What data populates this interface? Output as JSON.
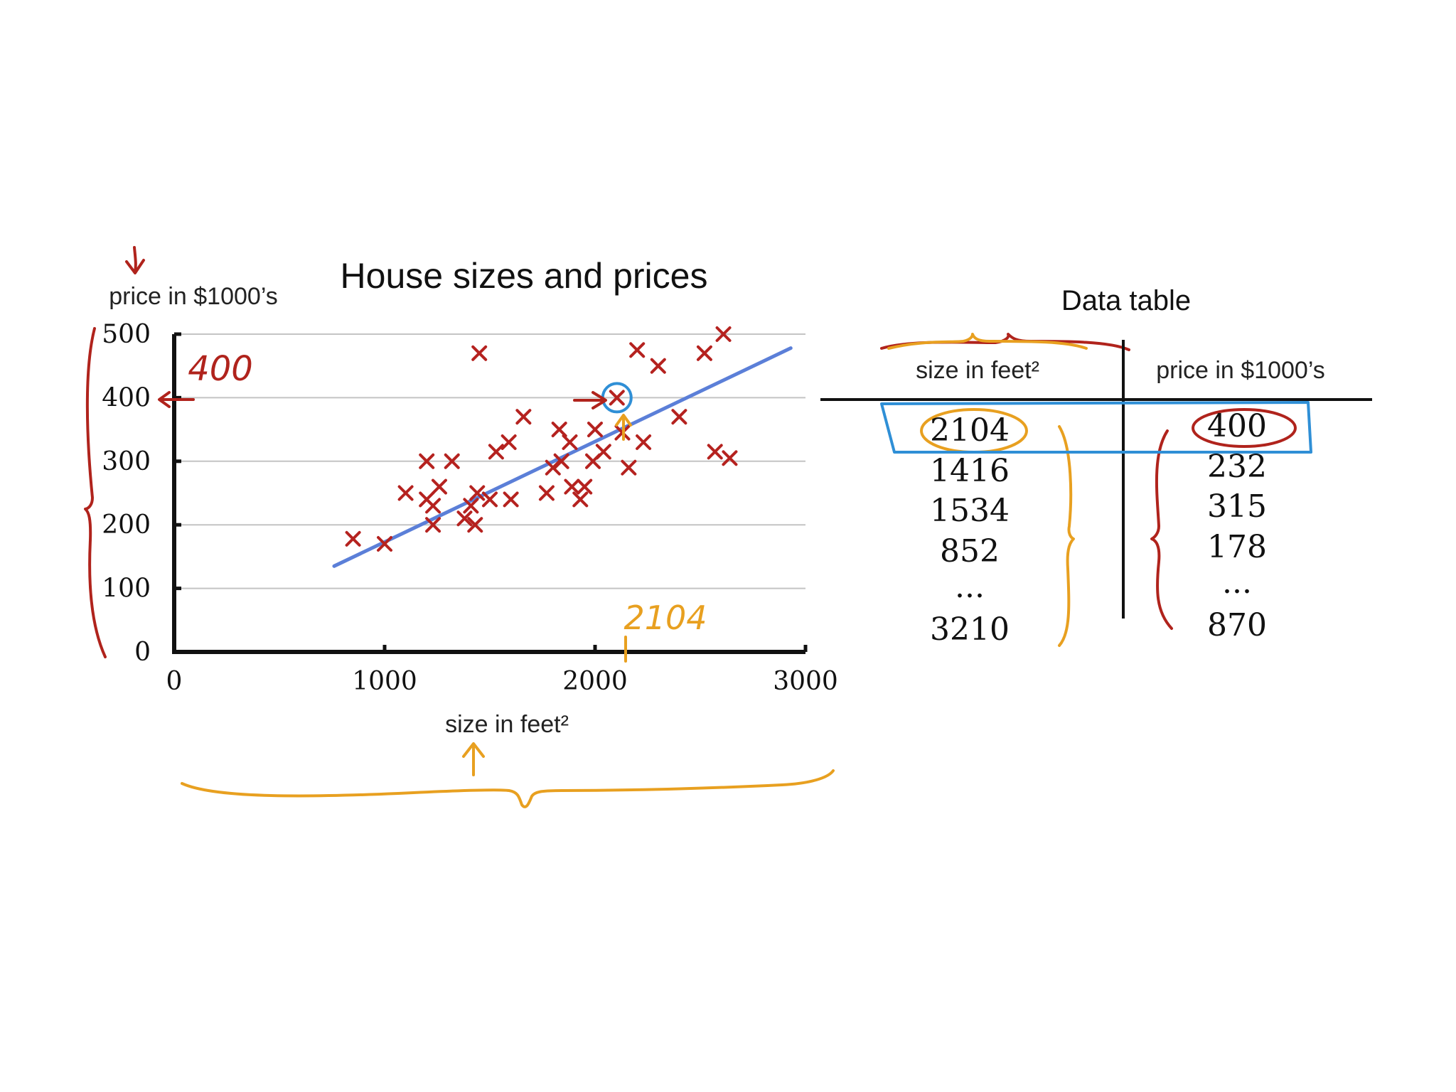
{
  "chart_data": {
    "type": "scatter",
    "title": "House sizes and prices",
    "xlabel": "size in feet²",
    "ylabel": "price in $1000’s",
    "xlim": [
      0,
      3000
    ],
    "ylim": [
      0,
      500
    ],
    "x_ticks": [
      "0",
      "1000",
      "2000",
      "3000"
    ],
    "y_ticks": [
      "0",
      "100",
      "200",
      "300",
      "400",
      "500"
    ],
    "grid": true,
    "points": [
      [
        850,
        178
      ],
      [
        1000,
        170
      ],
      [
        1100,
        250
      ],
      [
        1200,
        300
      ],
      [
        1200,
        240
      ],
      [
        1230,
        230
      ],
      [
        1230,
        200
      ],
      [
        1260,
        260
      ],
      [
        1320,
        300
      ],
      [
        1380,
        210
      ],
      [
        1410,
        230
      ],
      [
        1430,
        200
      ],
      [
        1440,
        250
      ],
      [
        1450,
        470
      ],
      [
        1500,
        240
      ],
      [
        1530,
        315
      ],
      [
        1590,
        330
      ],
      [
        1600,
        240
      ],
      [
        1660,
        370
      ],
      [
        1770,
        250
      ],
      [
        1800,
        290
      ],
      [
        1830,
        350
      ],
      [
        1840,
        300
      ],
      [
        1880,
        330
      ],
      [
        1890,
        260
      ],
      [
        1930,
        240
      ],
      [
        1950,
        260
      ],
      [
        1990,
        300
      ],
      [
        2000,
        350
      ],
      [
        2040,
        315
      ],
      [
        2104,
        400
      ],
      [
        2130,
        345
      ],
      [
        2160,
        290
      ],
      [
        2200,
        475
      ],
      [
        2230,
        330
      ],
      [
        2300,
        450
      ],
      [
        2400,
        370
      ],
      [
        2520,
        470
      ],
      [
        2570,
        315
      ],
      [
        2610,
        500
      ],
      [
        2640,
        305
      ]
    ],
    "fit_line": {
      "x": [
        760,
        2930
      ],
      "y": [
        135,
        478
      ]
    },
    "highlight_point": [
      2104,
      400
    ]
  },
  "table": {
    "title": "Data table",
    "headers": [
      "size in feet²",
      "price in $1000’s"
    ],
    "sizes": [
      "2104",
      "1416",
      "1534",
      "852",
      "...",
      "3210"
    ],
    "prices": [
      "400",
      "232",
      "315",
      "178",
      "...",
      "870"
    ]
  },
  "annotations": {
    "price_note": "400",
    "size_note": "2104"
  },
  "colors": {
    "marker": "#b5221f",
    "fit_line": "#5b7fd8",
    "highlight": "#2f8fd6",
    "annotation_red": "#b0231c",
    "annotation_orange": "#e8a020",
    "axis": "#111111",
    "grid": "#c4c4c4"
  }
}
